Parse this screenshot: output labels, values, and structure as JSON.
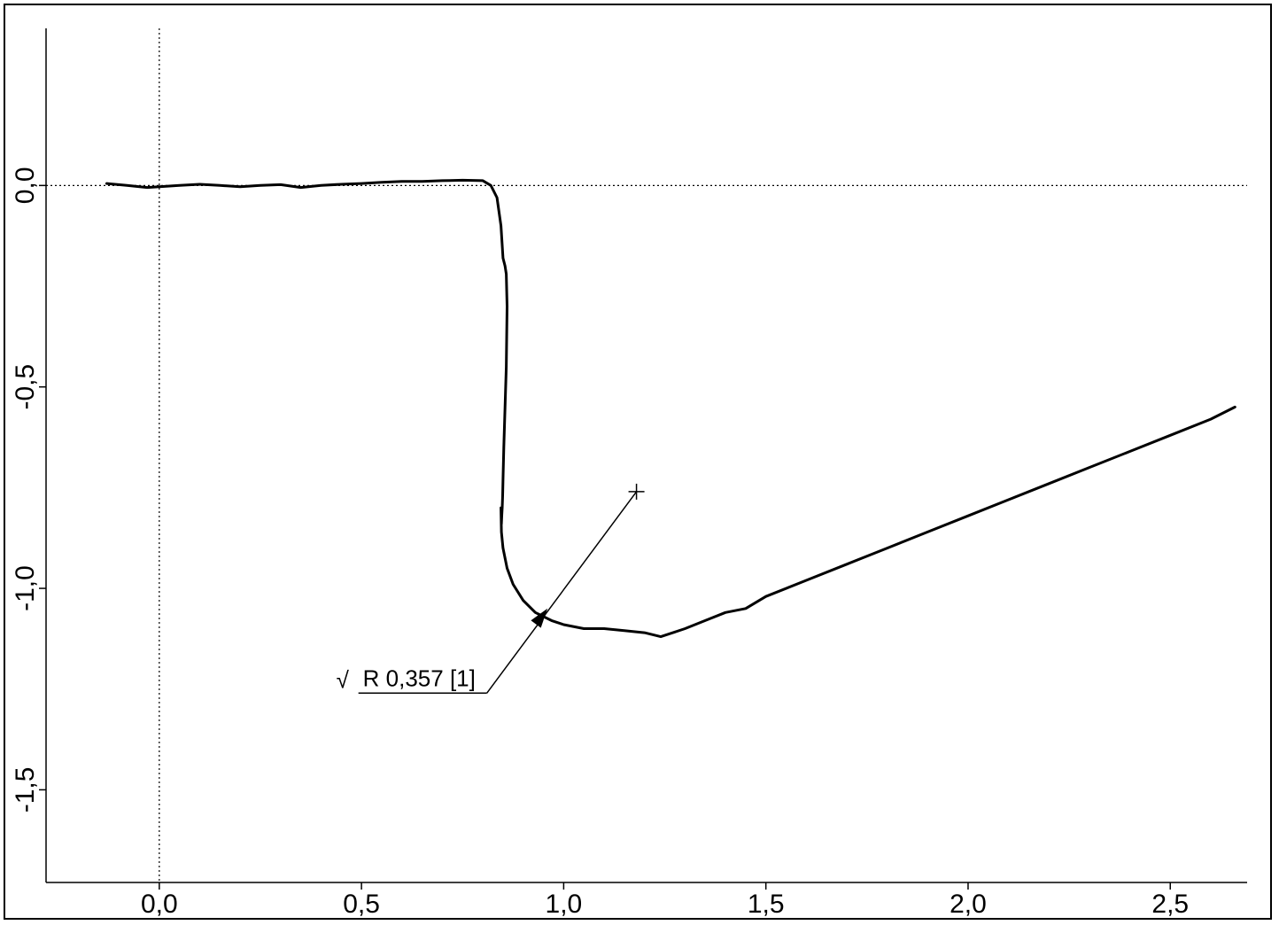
{
  "chart_data": {
    "type": "line",
    "title": "",
    "xlabel": "",
    "ylabel": "",
    "xlim": [
      -0.28,
      2.69
    ],
    "ylim": [
      -1.73,
      0.39
    ],
    "x_ticks": [
      {
        "value": 0.0,
        "label": "0,0"
      },
      {
        "value": 0.5,
        "label": "0,5"
      },
      {
        "value": 1.0,
        "label": "1,0"
      },
      {
        "value": 1.5,
        "label": "1,5"
      },
      {
        "value": 2.0,
        "label": "2,0"
      },
      {
        "value": 2.5,
        "label": "2,5"
      }
    ],
    "y_ticks": [
      {
        "value": 0.0,
        "label": "0,0"
      },
      {
        "value": -0.5,
        "label": "-0,5"
      },
      {
        "value": -1.0,
        "label": "-1,0"
      },
      {
        "value": -1.5,
        "label": "-1,5"
      }
    ],
    "grid": false,
    "reference_lines": [
      {
        "axis": "x",
        "value": 0.0,
        "style": "dotted"
      },
      {
        "axis": "y",
        "value": 0.0,
        "style": "dotted"
      }
    ],
    "series": [
      {
        "color": "#000000",
        "x": [
          -0.13,
          -0.08,
          -0.03,
          0.0,
          0.05,
          0.1,
          0.15,
          0.2,
          0.25,
          0.3,
          0.35,
          0.4,
          0.45,
          0.5,
          0.55,
          0.6,
          0.65,
          0.7,
          0.75,
          0.8,
          0.82,
          0.835,
          0.845,
          0.85,
          0.855,
          0.858,
          0.86,
          0.858,
          0.855,
          0.852,
          0.85,
          0.849,
          0.848,
          0.847,
          0.846,
          0.845,
          0.846,
          0.85,
          0.86,
          0.875,
          0.9,
          0.93,
          0.97,
          1.0,
          1.05,
          1.1,
          1.15,
          1.2,
          1.24,
          1.27,
          1.3,
          1.35,
          1.4,
          1.45,
          1.5,
          1.6,
          1.7,
          1.8,
          1.9,
          2.0,
          2.1,
          2.2,
          2.3,
          2.4,
          2.5,
          2.6,
          2.66
        ],
        "y": [
          0.005,
          0.0,
          -0.005,
          -0.003,
          0.0,
          0.003,
          0.0,
          -0.003,
          0.0,
          0.002,
          -0.005,
          0.0,
          0.003,
          0.005,
          0.008,
          0.01,
          0.01,
          0.012,
          0.013,
          0.012,
          0.0,
          -0.03,
          -0.1,
          -0.18,
          -0.2,
          -0.22,
          -0.3,
          -0.45,
          -0.55,
          -0.65,
          -0.73,
          -0.77,
          -0.8,
          -0.82,
          -0.84,
          -0.8,
          -0.86,
          -0.9,
          -0.95,
          -0.99,
          -1.03,
          -1.06,
          -1.08,
          -1.09,
          -1.1,
          -1.1,
          -1.105,
          -1.11,
          -1.12,
          -1.11,
          -1.1,
          -1.08,
          -1.06,
          -1.05,
          -1.02,
          -0.98,
          -0.94,
          -0.9,
          -0.86,
          -0.82,
          -0.78,
          -0.74,
          -0.7,
          -0.66,
          -0.62,
          -0.58,
          -0.55
        ]
      }
    ],
    "annotation": {
      "text": "R 0,357 [1]",
      "symbol": "√",
      "arrow_tip": {
        "x": 0.96,
        "y": -1.05
      },
      "cross_marker": {
        "x": 1.18,
        "y": -0.76
      },
      "label_anchor": {
        "x": 0.81,
        "y": -1.26
      }
    }
  }
}
